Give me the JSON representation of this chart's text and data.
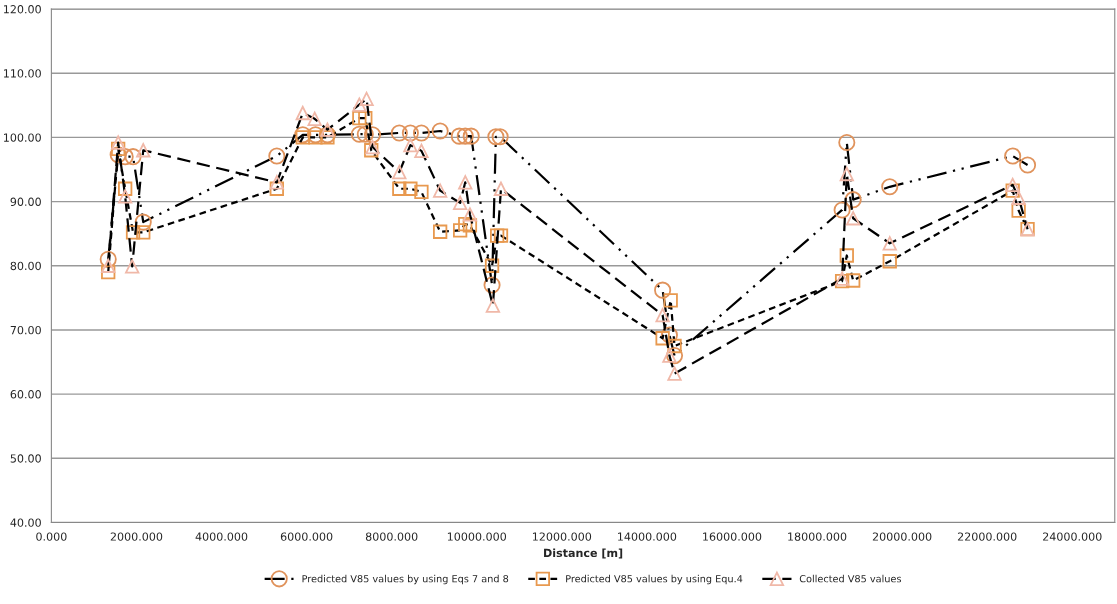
{
  "chart_data": {
    "type": "line",
    "xlabel": "Distance [m]",
    "xlim": [
      0,
      25000
    ],
    "xticks": [
      {
        "value": 0,
        "label": "0.000"
      },
      {
        "value": 2000,
        "label": "2000.000"
      },
      {
        "value": 4000,
        "label": "4000.000"
      },
      {
        "value": 6000,
        "label": "6000.000"
      },
      {
        "value": 8000,
        "label": "8000.000"
      },
      {
        "value": 10000,
        "label": "10000.000"
      },
      {
        "value": 12000,
        "label": "12000.000"
      },
      {
        "value": 14000,
        "label": "14000.000"
      },
      {
        "value": 16000,
        "label": "16000.000"
      },
      {
        "value": 18000,
        "label": "18000.000"
      },
      {
        "value": 20000,
        "label": "20000.000"
      },
      {
        "value": 22000,
        "label": "22000.000"
      },
      {
        "value": 24000,
        "label": "24000.000"
      }
    ],
    "ylim": [
      40,
      120
    ],
    "yticks": [
      {
        "value": 40,
        "label": "40.00"
      },
      {
        "value": 50,
        "label": "50.00"
      },
      {
        "value": 60,
        "label": "60.00"
      },
      {
        "value": 70,
        "label": "70.00"
      },
      {
        "value": 80,
        "label": "80.00"
      },
      {
        "value": 90,
        "label": "90.00"
      },
      {
        "value": 100,
        "label": "100.00"
      },
      {
        "value": 110,
        "label": "110.00"
      },
      {
        "value": 120,
        "label": "120.00"
      }
    ],
    "grid": "y",
    "legend": "bottom",
    "series": [
      {
        "name": "Predicted V85 values by using Eqs 7 and 8",
        "color": "#e0935c",
        "marker": "circle",
        "line_style": "dashdot",
        "x": [
          1336,
          1570,
          1735,
          1920,
          2160,
          5300,
          5910,
          6210,
          6490,
          7240,
          7380,
          7550,
          8180,
          8440,
          8700,
          9140,
          9590,
          9730,
          9870,
          10360,
          10450,
          10550,
          14370,
          14530,
          14650,
          18590,
          18700,
          18850,
          19710,
          22600,
          22950
        ],
        "values": [
          81.0,
          97.3,
          97.0,
          97.0,
          86.8,
          97.1,
          100.4,
          100.4,
          100.4,
          100.5,
          100.5,
          100.4,
          100.7,
          100.7,
          100.7,
          101.0,
          100.2,
          100.2,
          100.2,
          77.0,
          100.1,
          100.1,
          76.2,
          69.2,
          66.0,
          88.7,
          99.2,
          90.3,
          92.3,
          97.1,
          95.7
        ]
      },
      {
        "name": "Predicted V85 values by using Equ.4",
        "color": "#e8994f",
        "marker": "square",
        "line_style": "dotted",
        "x": [
          1336,
          1570,
          1735,
          1920,
          2160,
          5300,
          5910,
          6210,
          6490,
          7240,
          7380,
          7520,
          8180,
          8440,
          8700,
          9140,
          9610,
          9730,
          9840,
          10360,
          10480,
          10570,
          14370,
          14560,
          14650,
          18590,
          18700,
          18850,
          19710,
          22600,
          22740,
          22950
        ],
        "values": [
          79.0,
          98.2,
          92.0,
          85.2,
          85.2,
          92.0,
          100.0,
          100.0,
          100.0,
          103.0,
          103.0,
          98.0,
          92.0,
          92.0,
          91.5,
          85.3,
          85.5,
          86.5,
          86.3,
          80.0,
          84.7,
          84.7,
          68.7,
          74.6,
          67.5,
          77.6,
          81.6,
          77.7,
          80.7,
          91.7,
          88.6,
          85.7
        ]
      },
      {
        "name": "Collected V85 values",
        "color": "#f0b8a8",
        "marker": "triangle",
        "line_style": "dashed",
        "x": [
          1336,
          1570,
          1735,
          1900,
          2160,
          5300,
          5910,
          6190,
          6490,
          7240,
          7410,
          7550,
          8180,
          8440,
          8700,
          9140,
          9610,
          9730,
          9840,
          10380,
          10570,
          14370,
          14530,
          14650,
          18590,
          18700,
          18850,
          19710,
          22600,
          22740,
          22950
        ],
        "values": [
          80.0,
          99.2,
          90.8,
          79.9,
          98.0,
          93.0,
          103.8,
          102.9,
          101.2,
          105.1,
          106.0,
          98.5,
          94.6,
          98.8,
          97.9,
          91.7,
          89.8,
          93.0,
          88.0,
          73.8,
          92.0,
          72.3,
          66.0,
          63.2,
          78.0,
          94.3,
          87.4,
          83.5,
          92.6,
          90.6,
          85.7
        ]
      }
    ]
  }
}
